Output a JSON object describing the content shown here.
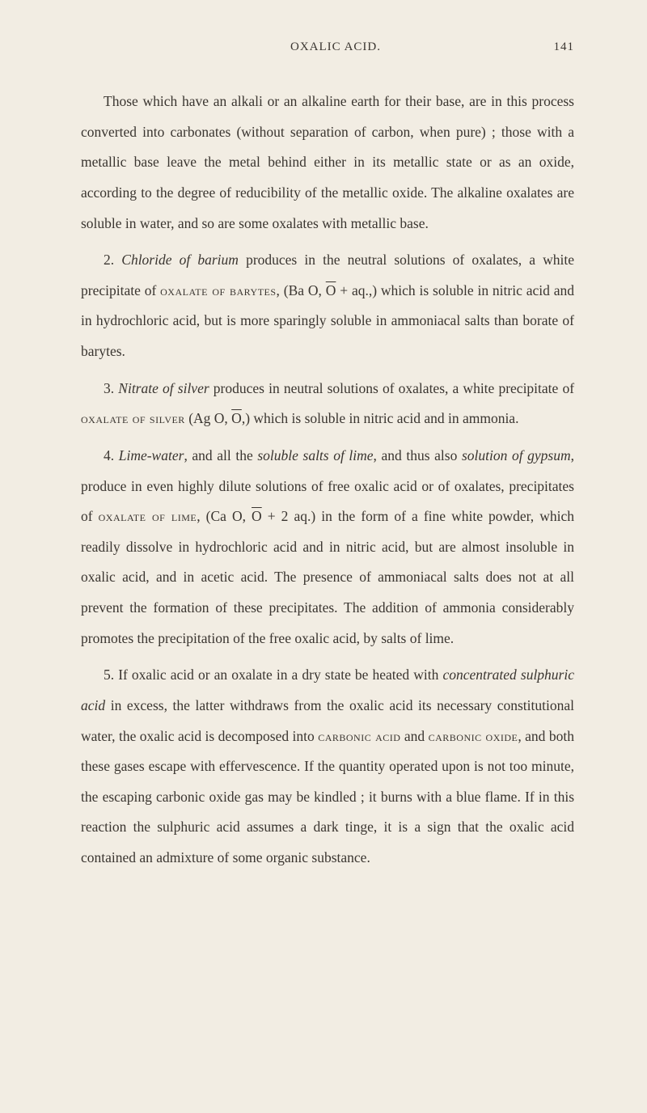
{
  "header": {
    "title": "OXALIC ACID.",
    "page_number": "141"
  },
  "colors": {
    "background": "#f2ede3",
    "text": "#3a3530"
  },
  "typography": {
    "body_fontsize": 17.5,
    "line_height": 2.15,
    "header_fontsize": 15,
    "font_family": "Georgia, Times New Roman, serif"
  },
  "paragraphs": [
    {
      "segments": [
        {
          "t": "Those which have an alkali or an alkaline earth for their base, are in this process converted into carbonates (without separation of carbon, when pure) ; those with a metallic base leave the metal behind either in its metallic state or as an oxide, according to the degree of reducibility of the metallic oxide. The alkaline oxa­lates are soluble in water, and so are some oxalates with metallic base."
        }
      ]
    },
    {
      "segments": [
        {
          "t": "2. "
        },
        {
          "t": "Chloride of barium",
          "ital": true
        },
        {
          "t": " produces in the neutral solutions of oxalates, a white precipitate of "
        },
        {
          "t": "oxalate of barytes",
          "sc": true
        },
        {
          "t": ", (Ba O, "
        },
        {
          "t": "O",
          "over": true
        },
        {
          "t": " + aq.,) which is soluble in nitric acid and in hydrochloric acid, but is more sparingly soluble in ammoniacal salts than borate of barytes."
        }
      ]
    },
    {
      "segments": [
        {
          "t": "3. "
        },
        {
          "t": "Nitrate of silver",
          "ital": true
        },
        {
          "t": " produces in neutral solutions of oxalates, a white precipitate of "
        },
        {
          "t": "oxalate of silver",
          "sc": true
        },
        {
          "t": " (Ag O, "
        },
        {
          "t": "O",
          "over": true
        },
        {
          "t": ",) which is solu­ble in nitric acid and in ammonia."
        }
      ]
    },
    {
      "segments": [
        {
          "t": "4. "
        },
        {
          "t": "Lime-water",
          "ital": true
        },
        {
          "t": ", and all the "
        },
        {
          "t": "soluble salts of lime",
          "ital": true
        },
        {
          "t": ", and thus also "
        },
        {
          "t": "solution of gypsum",
          "ital": true
        },
        {
          "t": ", produce in even highly dilute solutions of free oxalic acid or of oxalates, precipitates of "
        },
        {
          "t": "oxalate of lime",
          "sc": true
        },
        {
          "t": ", (Ca O, "
        },
        {
          "t": "O",
          "over": true
        },
        {
          "t": " + 2 aq.) in the form of a fine white powder, which readily dissolve in hydrochloric acid and in nitric acid, but are almost in­soluble in oxalic acid, and in acetic acid. The presence of ammo­niacal salts does not at all prevent the formation of these preci­pitates. The addition of ammonia considerably promotes the precipitation of the free oxalic acid, by salts of lime."
        }
      ]
    },
    {
      "segments": [
        {
          "t": "5. If oxalic acid or an oxalate in a dry state be heated with "
        },
        {
          "t": "concentrated sulphuric acid",
          "ital": true
        },
        {
          "t": " in excess, the latter withdraws from the oxalic acid its necessary constitutional water, the oxalic acid is decomposed into "
        },
        {
          "t": "carbonic acid",
          "sc": true
        },
        {
          "t": " and "
        },
        {
          "t": "carbonic oxide",
          "sc": true
        },
        {
          "t": ", and both these gases escape with effervescence. If the quantity operated upon is not too minute, the escaping carbonic oxide gas may be kindled ; it burns with a blue flame. If in this reaction the sulphuric acid assumes a dark tinge, it is a sign that the oxalic acid contained an admixture of some organic substance."
        }
      ]
    }
  ]
}
